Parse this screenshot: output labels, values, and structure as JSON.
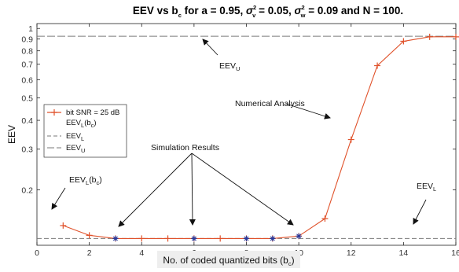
{
  "chart_data": {
    "type": "line",
    "title": {
      "prefix": "EEV vs b",
      "prefix_sub": "c",
      "for_a": " for a = 0.95, ",
      "sigma_v": "σ",
      "sigma_v_sup": "2",
      "sigma_v_sub": "v",
      "sigma_v_val": " = 0.05, ",
      "sigma_w": "σ",
      "sigma_w_sup": "2",
      "sigma_w_sub": "w",
      "tail": " = 0.09 and N = 100."
    },
    "xlabel": {
      "text": "No. of coded quantized bits (b",
      "sub": "c",
      "close": ")"
    },
    "ylabel": "EEV",
    "xlim": [
      0,
      16
    ],
    "ylim": [
      0.115,
      1.05
    ],
    "yscale": "log",
    "xticks": [
      0,
      2,
      4,
      6,
      8,
      10,
      12,
      14,
      16
    ],
    "yticks": [
      {
        "value": 0.2,
        "label": "0.2"
      },
      {
        "value": 0.3,
        "label": "0.3"
      },
      {
        "value": 0.4,
        "label": "0.4"
      },
      {
        "value": 0.5,
        "label": "0.5"
      },
      {
        "value": 0.6,
        "label": "0.6"
      },
      {
        "value": 0.7,
        "label": "0.7"
      },
      {
        "value": 0.8,
        "label": "0.8"
      },
      {
        "value": 0.9,
        "label": "0.9"
      },
      {
        "value": 1.0,
        "label": "1"
      }
    ],
    "grid": false,
    "colors": {
      "analysis": "#e0522b",
      "simulation": "#2a3a9a",
      "bound": "#7a7a7a",
      "text": "#111111"
    },
    "series": [
      {
        "name": "bit SNR = 25 dB",
        "style": "solid-plus",
        "x": [
          1,
          2,
          3,
          4,
          5,
          6,
          7,
          8,
          9,
          10,
          11,
          12,
          13,
          14,
          15,
          16
        ],
        "y": [
          0.14,
          0.127,
          0.123,
          0.123,
          0.123,
          0.123,
          0.123,
          0.123,
          0.123,
          0.126,
          0.15,
          0.33,
          0.69,
          0.88,
          0.92,
          0.92
        ]
      },
      {
        "name": "",
        "style": "star",
        "x": [
          3,
          6,
          8,
          9,
          10
        ],
        "y": [
          0.123,
          0.123,
          0.123,
          0.123,
          0.126
        ]
      },
      {
        "name": "EEV_L(b_c)",
        "style": "marker-only",
        "x": [],
        "y": []
      },
      {
        "name": "EEV_L",
        "style": "dashed",
        "x": [
          0,
          16
        ],
        "y": [
          0.123,
          0.123
        ]
      },
      {
        "name": "EEV_U",
        "style": "dashed",
        "x": [
          0,
          16
        ],
        "y": [
          0.925,
          0.925
        ]
      }
    ],
    "legend": {
      "placement": "middle-left",
      "entries": [
        {
          "key": "analysis",
          "text": "bit SNR = 25 dB",
          "sub": "",
          "tail": ""
        },
        {
          "key": "eevl_bc",
          "text": "EEV",
          "sub": "L",
          "tail": "(b",
          "sub2": "c",
          "tail2": ")"
        },
        {
          "key": "eevl",
          "text": "EEV",
          "sub": "L",
          "tail": ""
        },
        {
          "key": "eevu",
          "text": "EEV",
          "sub": "U",
          "tail": ""
        }
      ]
    },
    "annotations": {
      "eevu": {
        "text": "EEV",
        "sub": "U"
      },
      "numerical": {
        "text": "Numerical Analysis"
      },
      "simulation": {
        "text": "Simulation Results"
      },
      "eevl_bc": {
        "text": "EEV",
        "sub": "L",
        "tail": "(b",
        "sub2": "c",
        "tail2": ")"
      },
      "eevl": {
        "text": "EEV",
        "sub": "L"
      }
    }
  }
}
